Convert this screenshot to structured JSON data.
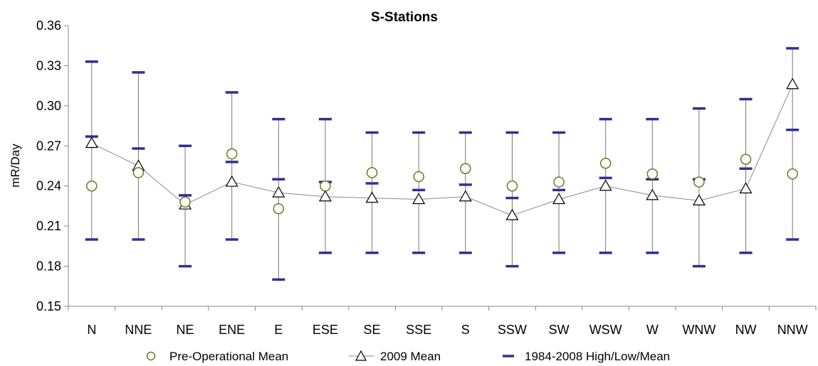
{
  "chart_data": {
    "type": "scatter",
    "title": "S-Stations",
    "ylabel": "mR/Day",
    "xlabel": "",
    "ylim": [
      0.15,
      0.36
    ],
    "yticks": [
      "0.36",
      "0.33",
      "0.30",
      "0.27",
      "0.24",
      "0.21",
      "0.18",
      "0.15"
    ],
    "categories": [
      "N",
      "NNE",
      "NE",
      "ENE",
      "E",
      "ESE",
      "SE",
      "SSE",
      "S",
      "SSW",
      "SW",
      "WSW",
      "W",
      "WNW",
      "NW",
      "NNW"
    ],
    "grid": false,
    "legend_position": "bottom",
    "series": [
      {
        "name": "Pre-Operational Mean",
        "marker": "circle",
        "color": "#6b7a1e",
        "values": [
          0.24,
          0.25,
          0.228,
          0.264,
          0.223,
          0.24,
          0.25,
          0.247,
          0.253,
          0.24,
          0.243,
          0.257,
          0.249,
          0.243,
          0.26,
          0.249
        ]
      },
      {
        "name": "2009 Mean",
        "marker": "triangle",
        "line": true,
        "color": "#000000",
        "values": [
          0.272,
          0.255,
          0.226,
          0.243,
          0.235,
          0.232,
          0.231,
          0.23,
          0.232,
          0.218,
          0.23,
          0.24,
          0.233,
          0.229,
          0.238,
          0.316
        ]
      },
      {
        "name": "1984-2008 High/Low/Mean",
        "marker": "dash",
        "color": "#2e3192",
        "high": [
          0.333,
          0.325,
          0.27,
          0.31,
          0.29,
          0.29,
          0.28,
          0.28,
          0.28,
          0.28,
          0.28,
          0.29,
          0.29,
          0.298,
          0.305,
          0.343
        ],
        "low": [
          0.2,
          0.2,
          0.18,
          0.2,
          0.17,
          0.19,
          0.19,
          0.19,
          0.19,
          0.18,
          0.19,
          0.19,
          0.19,
          0.18,
          0.19,
          0.2
        ],
        "mean": [
          0.277,
          0.268,
          0.233,
          0.258,
          0.245,
          0.243,
          0.242,
          0.237,
          0.241,
          0.231,
          0.237,
          0.246,
          0.245,
          0.245,
          0.253,
          0.282
        ]
      }
    ]
  }
}
